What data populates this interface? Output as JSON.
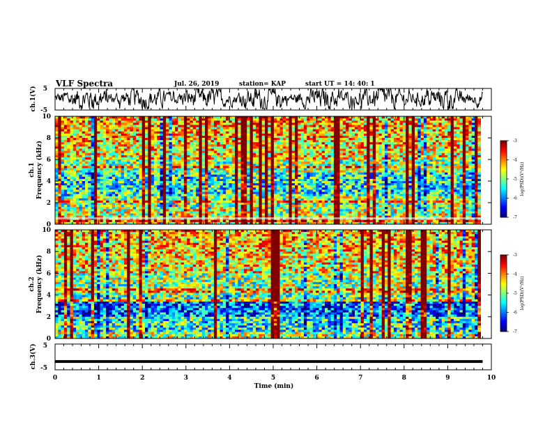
{
  "header": {
    "title": "VLF Spectra",
    "date": "Jul. 26, 2019",
    "station": "station= KAP",
    "start_ut": "start UT =  14: 40: 1"
  },
  "chart_data": [
    {
      "type": "line",
      "panel": "ch1-waveform",
      "ylabel": "ch.1(V)",
      "ylim": [
        -5,
        5
      ],
      "yticks": [
        "5",
        "-5"
      ],
      "xlim": [
        0,
        10
      ],
      "note_series_trace": "noisy waveform oscillating roughly between -3 and 4 V over 0 to 9.8 min"
    },
    {
      "type": "heatmap",
      "panel": "ch1-spectrogram",
      "ylabel_top": "ch.1",
      "ylabel": "Frequency (kHz)",
      "ylim": [
        0,
        10
      ],
      "yticks": [
        "0",
        "2",
        "4",
        "6",
        "8",
        "10"
      ],
      "xlim": [
        0,
        9.8
      ],
      "colorbar": {
        "label": "log(PSD)(V²/Hz)",
        "range": [
          -7,
          -3
        ],
        "ticks": [
          "-3",
          "-4",
          "-5",
          "-6",
          "-7"
        ]
      }
    },
    {
      "type": "heatmap",
      "panel": "ch2-spectrogram",
      "ylabel_top": "ch.2",
      "ylabel": "Frequency (kHz)",
      "ylim": [
        0,
        10
      ],
      "yticks": [
        "0",
        "2",
        "4",
        "6",
        "8",
        "10"
      ],
      "xlim": [
        0,
        9.8
      ],
      "colorbar": {
        "label": "log(PSD)(V²/Hz)",
        "range": [
          -7,
          -3
        ],
        "ticks": [
          "-3",
          "-4",
          "-5",
          "-6",
          "-7"
        ]
      }
    },
    {
      "type": "line",
      "panel": "ch3-waveform",
      "ylabel": "ch.3(V)",
      "ylim": [
        -5,
        5
      ],
      "yticks": [
        "5",
        "-5"
      ],
      "x": [
        0,
        9.8
      ],
      "values": [
        -1.8,
        -1.8
      ]
    }
  ],
  "x_axis": {
    "label": "Time (min)",
    "ticks": [
      "0",
      "1",
      "2",
      "3",
      "4",
      "5",
      "6",
      "7",
      "8",
      "9",
      "10"
    ],
    "range": [
      0,
      10
    ]
  }
}
